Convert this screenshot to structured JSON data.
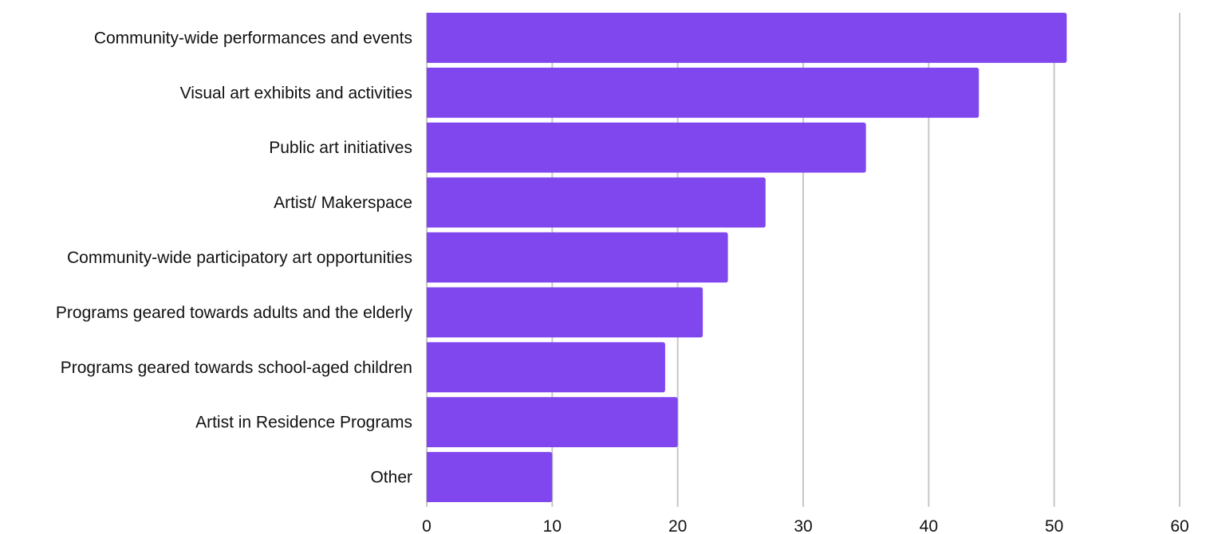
{
  "chart_data": {
    "type": "bar",
    "orientation": "horizontal",
    "title": "",
    "xlabel": "",
    "ylabel": "",
    "categories": [
      "Community-wide performances and events",
      "Visual art exhibits and activities",
      "Public art initiatives",
      "Artist/ Makerspace",
      "Community-wide participatory art opportunities",
      "Programs geared towards adults and the elderly",
      "Programs geared towards school-aged children",
      "Artist in Residence Programs",
      "Other"
    ],
    "values": [
      51,
      44,
      35,
      27,
      24,
      22,
      19,
      20,
      10
    ],
    "xlim": [
      0,
      60
    ],
    "xticks": [
      "0",
      "10",
      "20",
      "30",
      "40",
      "50",
      "60"
    ],
    "grid": "vertical",
    "legend": "none",
    "bar_color": "#8047EF",
    "grid_color": "#C8C8C8"
  }
}
